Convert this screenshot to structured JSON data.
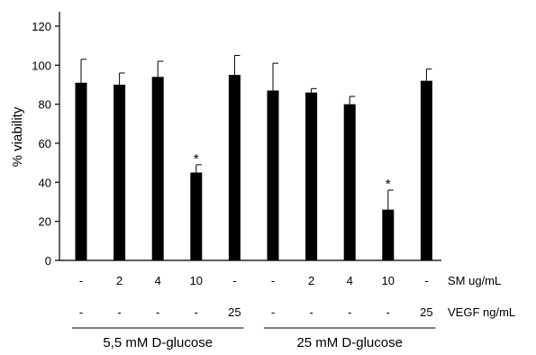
{
  "chart_data": {
    "type": "bar",
    "ylabel": "% viability",
    "ylim": [
      0,
      120
    ],
    "yticks": [
      0,
      20,
      40,
      60,
      80,
      100,
      120
    ],
    "grid": false,
    "bar_color": "#000000",
    "series": [
      {
        "values": [
          91,
          90,
          94,
          45,
          95,
          87,
          86,
          80,
          26,
          92
        ],
        "errors": [
          12,
          6,
          8,
          4,
          10,
          14,
          2,
          4,
          10,
          6
        ]
      }
    ],
    "annotations": [
      {
        "bar_index": 3,
        "text": "*"
      },
      {
        "bar_index": 8,
        "text": "*"
      }
    ],
    "row_labels": [
      {
        "name": "SM ug/mL",
        "values": [
          "-",
          "2",
          "4",
          "10",
          "-",
          "-",
          "2",
          "4",
          "10",
          "-"
        ]
      },
      {
        "name": "VEGF ng/mL",
        "values": [
          "-",
          "-",
          "-",
          "-",
          "25",
          "-",
          "-",
          "-",
          "-",
          "25"
        ]
      }
    ],
    "groups": [
      {
        "label": "5,5 mM D-glucose",
        "start_index": 0,
        "end_index": 4
      },
      {
        "label": "25 mM D-glucose",
        "start_index": 5,
        "end_index": 9
      }
    ]
  }
}
